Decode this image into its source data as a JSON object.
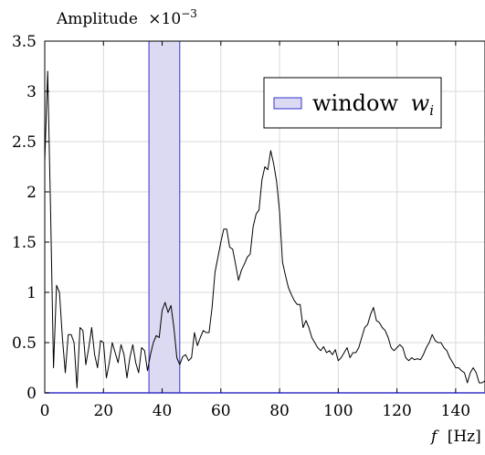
{
  "chart_data": {
    "type": "line",
    "title": "",
    "ylabel": "Amplitude",
    "yexponent_label": "×10",
    "yexponent_power": "−3",
    "xlabel_var": "f",
    "xlabel_unit": "[Hz]",
    "xlim": [
      0,
      150
    ],
    "ylim": [
      0,
      3.5
    ],
    "xticks": [
      0,
      20,
      40,
      60,
      80,
      100,
      120,
      140
    ],
    "yticks": [
      0,
      0.5,
      1,
      1.5,
      2,
      2.5,
      3,
      3.5
    ],
    "xtick_labels": [
      "0",
      "20",
      "40",
      "60",
      "80",
      "100",
      "120",
      "140"
    ],
    "ytick_labels": [
      "0",
      "0.5",
      "1",
      "1.5",
      "2",
      "2.5",
      "3",
      "3.5"
    ],
    "grid": true,
    "legend_position": "top-right",
    "window": {
      "x_start": 35.5,
      "x_end": 46.0,
      "label_text": "window",
      "label_var": "w",
      "label_sub": "i",
      "fill": "#dcdaf3",
      "stroke": "#3333cc"
    },
    "series": [
      {
        "color": "#000000",
        "x": [
          0,
          1,
          2,
          3,
          4,
          5,
          6,
          7,
          8,
          9,
          10,
          11,
          12,
          13,
          14,
          15,
          16,
          17,
          18,
          19,
          20,
          21,
          22,
          23,
          24,
          25,
          26,
          27,
          28,
          29,
          30,
          31,
          32,
          33,
          34,
          35,
          36,
          37,
          38,
          39,
          40,
          41,
          42,
          43,
          44,
          45,
          46,
          47,
          48,
          49,
          50,
          51,
          52,
          53,
          54,
          55,
          56,
          57,
          58,
          59,
          60,
          61,
          62,
          63,
          64,
          65,
          66,
          67,
          68,
          69,
          70,
          71,
          72,
          73,
          74,
          75,
          76,
          77,
          78,
          79,
          80,
          81,
          82,
          83,
          84,
          85,
          86,
          87,
          88,
          89,
          90,
          91,
          92,
          93,
          94,
          95,
          96,
          97,
          98,
          99,
          100,
          101,
          102,
          103,
          104,
          105,
          106,
          107,
          108,
          109,
          110,
          111,
          112,
          113,
          114,
          115,
          116,
          117,
          118,
          119,
          120,
          121,
          122,
          123,
          124,
          125,
          126,
          127,
          128,
          129,
          130,
          131,
          132,
          133,
          134,
          135,
          136,
          137,
          138,
          139,
          140,
          141,
          142,
          143,
          144,
          145,
          146,
          147,
          148,
          149,
          150
        ],
        "y": [
          2.3,
          3.2,
          1.8,
          0.25,
          1.07,
          1.0,
          0.55,
          0.2,
          0.58,
          0.58,
          0.5,
          0.05,
          0.65,
          0.62,
          0.28,
          0.45,
          0.65,
          0.38,
          0.25,
          0.52,
          0.5,
          0.15,
          0.3,
          0.5,
          0.4,
          0.3,
          0.48,
          0.38,
          0.15,
          0.35,
          0.48,
          0.3,
          0.2,
          0.45,
          0.42,
          0.22,
          0.38,
          0.5,
          0.57,
          0.55,
          0.82,
          0.9,
          0.8,
          0.87,
          0.65,
          0.35,
          0.28,
          0.36,
          0.38,
          0.32,
          0.35,
          0.6,
          0.47,
          0.55,
          0.62,
          0.6,
          0.6,
          0.85,
          1.2,
          1.35,
          1.5,
          1.63,
          1.63,
          1.45,
          1.43,
          1.28,
          1.12,
          1.22,
          1.28,
          1.35,
          1.38,
          1.65,
          1.78,
          1.82,
          2.12,
          2.25,
          2.22,
          2.41,
          2.28,
          2.1,
          1.8,
          1.3,
          1.17,
          1.05,
          0.98,
          0.92,
          0.88,
          0.88,
          0.65,
          0.72,
          0.65,
          0.55,
          0.5,
          0.45,
          0.42,
          0.46,
          0.4,
          0.42,
          0.38,
          0.43,
          0.32,
          0.35,
          0.4,
          0.45,
          0.35,
          0.4,
          0.4,
          0.45,
          0.55,
          0.65,
          0.68,
          0.78,
          0.85,
          0.72,
          0.7,
          0.65,
          0.62,
          0.55,
          0.45,
          0.42,
          0.45,
          0.48,
          0.45,
          0.35,
          0.32,
          0.35,
          0.33,
          0.34,
          0.33,
          0.38,
          0.45,
          0.5,
          0.58,
          0.52,
          0.5,
          0.5,
          0.45,
          0.42,
          0.35,
          0.3,
          0.25,
          0.25,
          0.22,
          0.2,
          0.1,
          0.2,
          0.25,
          0.2,
          0.1,
          0.1,
          0.12
        ]
      }
    ]
  }
}
